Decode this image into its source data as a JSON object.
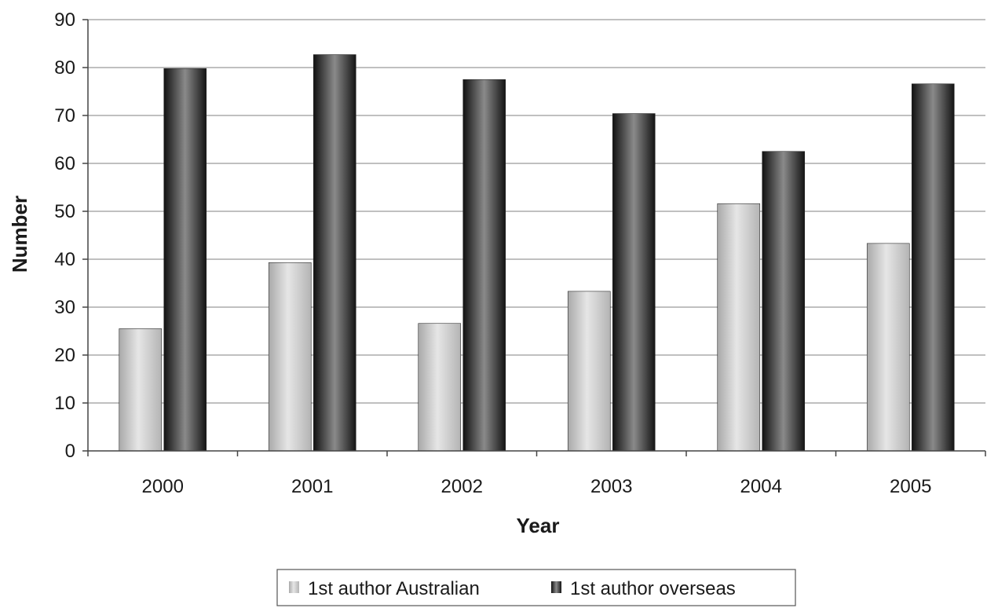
{
  "chart_data": {
    "type": "bar",
    "title": "",
    "xlabel": "Year",
    "ylabel": "Number",
    "categories": [
      "2000",
      "2001",
      "2002",
      "2003",
      "2004",
      "2005"
    ],
    "series": [
      {
        "name": "1st author Australian",
        "values": [
          25.5,
          39.3,
          26.6,
          33.3,
          51.6,
          43.3
        ],
        "color": "#c8c8c8"
      },
      {
        "name": "1st author overseas",
        "values": [
          79.8,
          82.7,
          77.5,
          70.4,
          62.5,
          76.6
        ],
        "color": "#3a3a3a"
      }
    ],
    "ylim": [
      0,
      90
    ],
    "yticks": [
      "0",
      "10",
      "20",
      "30",
      "40",
      "50",
      "60",
      "70",
      "80",
      "90"
    ],
    "grid": true,
    "legend_position": "bottom"
  }
}
